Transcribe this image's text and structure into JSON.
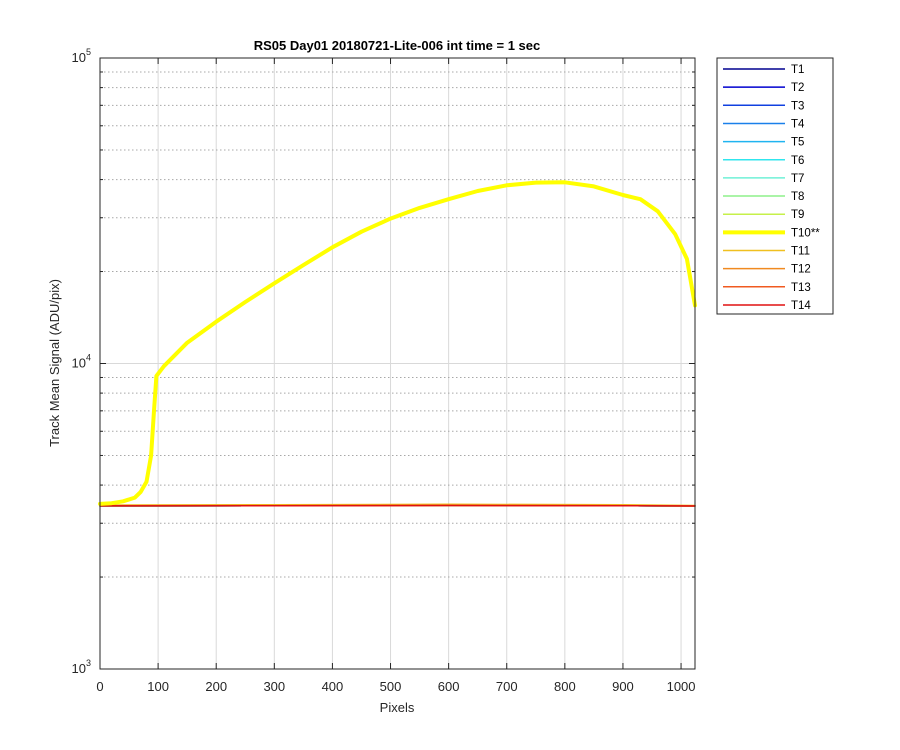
{
  "chart_data": {
    "type": "line",
    "title": "RS05 Day01 20180721-Lite-006 int time = 1 sec",
    "xlabel": "Pixels",
    "ylabel": "Track Mean Signal (ADU/pix)",
    "xlim": [
      0,
      1024
    ],
    "ylim": [
      1000,
      100000
    ],
    "yscale": "log",
    "grid": true,
    "x_ticks": [
      0,
      100,
      200,
      300,
      400,
      500,
      600,
      700,
      800,
      900,
      1000
    ],
    "y_ticks": [
      {
        "base": "10",
        "exp": "3",
        "value": 1000
      },
      {
        "base": "10",
        "exp": "4",
        "value": 10000
      },
      {
        "base": "10",
        "exp": "5",
        "value": 100000
      }
    ],
    "legend_position": "outside-top-right",
    "series": [
      {
        "name": "T1",
        "color": "#00008f",
        "width": 1.5,
        "values": [
          [
            0,
            3420
          ],
          [
            300,
            3425
          ],
          [
            600,
            3430
          ],
          [
            900,
            3425
          ],
          [
            1024,
            3415
          ]
        ]
      },
      {
        "name": "T2",
        "color": "#0000cf",
        "width": 1.5,
        "values": [
          [
            0,
            3420
          ],
          [
            300,
            3425
          ],
          [
            600,
            3430
          ],
          [
            900,
            3425
          ],
          [
            1024,
            3415
          ]
        ]
      },
      {
        "name": "T3",
        "color": "#1040e0",
        "width": 1.5,
        "values": [
          [
            0,
            3420
          ],
          [
            300,
            3425
          ],
          [
            600,
            3430
          ],
          [
            900,
            3425
          ],
          [
            1024,
            3415
          ]
        ]
      },
      {
        "name": "T4",
        "color": "#1a80ea",
        "width": 1.5,
        "values": [
          [
            0,
            3420
          ],
          [
            300,
            3425
          ],
          [
            600,
            3430
          ],
          [
            900,
            3425
          ],
          [
            1024,
            3415
          ]
        ]
      },
      {
        "name": "T5",
        "color": "#20b4f0",
        "width": 1.5,
        "values": [
          [
            0,
            3420
          ],
          [
            300,
            3425
          ],
          [
            600,
            3430
          ],
          [
            900,
            3425
          ],
          [
            1024,
            3415
          ]
        ]
      },
      {
        "name": "T6",
        "color": "#30e6ee",
        "width": 1.5,
        "values": [
          [
            0,
            3420
          ],
          [
            300,
            3425
          ],
          [
            600,
            3430
          ],
          [
            900,
            3425
          ],
          [
            1024,
            3415
          ]
        ]
      },
      {
        "name": "T7",
        "color": "#6ff0d6",
        "width": 1.5,
        "values": [
          [
            0,
            3420
          ],
          [
            300,
            3425
          ],
          [
            600,
            3430
          ],
          [
            900,
            3425
          ],
          [
            1024,
            3415
          ]
        ]
      },
      {
        "name": "T8",
        "color": "#8ef08a",
        "width": 1.5,
        "values": [
          [
            0,
            3420
          ],
          [
            300,
            3425
          ],
          [
            600,
            3430
          ],
          [
            900,
            3425
          ],
          [
            1024,
            3415
          ]
        ]
      },
      {
        "name": "T9",
        "color": "#c6f04a",
        "width": 1.5,
        "values": [
          [
            0,
            3420
          ],
          [
            300,
            3425
          ],
          [
            600,
            3430
          ],
          [
            900,
            3425
          ],
          [
            1024,
            3415
          ]
        ]
      },
      {
        "name": "T10**",
        "color": "#ffff00",
        "width": 4,
        "values": [
          [
            0,
            3470
          ],
          [
            20,
            3490
          ],
          [
            40,
            3540
          ],
          [
            60,
            3640
          ],
          [
            70,
            3800
          ],
          [
            80,
            4100
          ],
          [
            88,
            5000
          ],
          [
            93,
            7000
          ],
          [
            97,
            9100
          ],
          [
            110,
            9800
          ],
          [
            150,
            11700
          ],
          [
            200,
            13700
          ],
          [
            250,
            15900
          ],
          [
            300,
            18300
          ],
          [
            350,
            21000
          ],
          [
            400,
            24000
          ],
          [
            450,
            27000
          ],
          [
            500,
            29800
          ],
          [
            550,
            32300
          ],
          [
            600,
            34500
          ],
          [
            650,
            36700
          ],
          [
            700,
            38300
          ],
          [
            750,
            39100
          ],
          [
            800,
            39200
          ],
          [
            850,
            38000
          ],
          [
            900,
            35600
          ],
          [
            930,
            34500
          ],
          [
            960,
            31500
          ],
          [
            990,
            26500
          ],
          [
            1010,
            22000
          ],
          [
            1024,
            15500
          ]
        ]
      },
      {
        "name": "T11",
        "color": "#f0c020",
        "width": 1.5,
        "values": [
          [
            0,
            3440
          ],
          [
            300,
            3450
          ],
          [
            600,
            3460
          ],
          [
            900,
            3450
          ],
          [
            1024,
            3430
          ]
        ]
      },
      {
        "name": "T12",
        "color": "#f08a20",
        "width": 1.5,
        "values": [
          [
            0,
            3425
          ],
          [
            300,
            3430
          ],
          [
            600,
            3435
          ],
          [
            900,
            3430
          ],
          [
            1024,
            3420
          ]
        ]
      },
      {
        "name": "T13",
        "color": "#f05a20",
        "width": 1.5,
        "values": [
          [
            0,
            3420
          ],
          [
            300,
            3425
          ],
          [
            600,
            3430
          ],
          [
            900,
            3425
          ],
          [
            1024,
            3415
          ]
        ]
      },
      {
        "name": "T14",
        "color": "#e01010",
        "width": 1.5,
        "values": [
          [
            0,
            3420
          ],
          [
            300,
            3425
          ],
          [
            600,
            3430
          ],
          [
            900,
            3425
          ],
          [
            1024,
            3415
          ]
        ]
      }
    ]
  }
}
